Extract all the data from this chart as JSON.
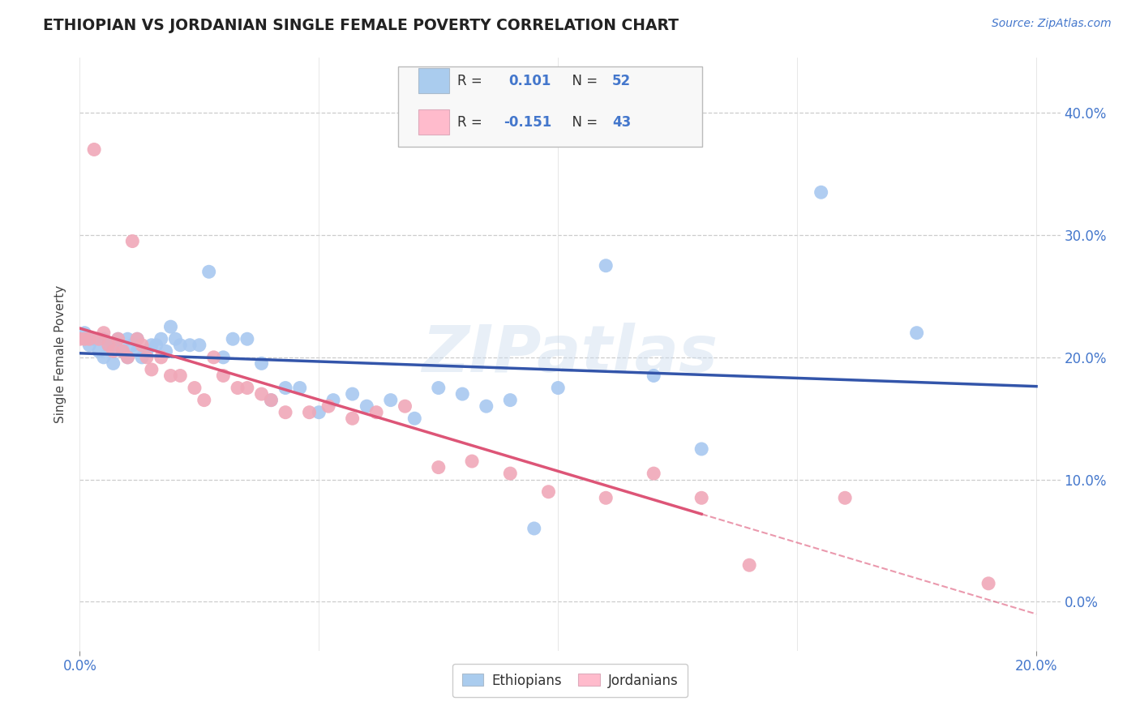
{
  "title": "ETHIOPIAN VS JORDANIAN SINGLE FEMALE POVERTY CORRELATION CHART",
  "source": "Source: ZipAtlas.com",
  "ylabel": "Single Female Poverty",
  "xlim": [
    0.0,
    0.205
  ],
  "ylim": [
    -0.04,
    0.445
  ],
  "yticks": [
    0.0,
    0.1,
    0.2,
    0.3,
    0.4
  ],
  "xticks": [
    0.0,
    0.2
  ],
  "background_color": "#ffffff",
  "grid_color": "#cccccc",
  "watermark": "ZIPatlas",
  "ethiopian_color": "#a8c8f0",
  "ethiopian_edge_color": "#a8c8f0",
  "jordanian_color": "#f0a8b8",
  "jordanian_edge_color": "#f0a8b8",
  "ethiopian_line_color": "#3355aa",
  "jordanian_line_color": "#dd5577",
  "R_ethiopian": 0.101,
  "N_ethiopian": 52,
  "R_jordanian": -0.151,
  "N_jordanian": 43,
  "ethiopians_x": [
    0.001,
    0.002,
    0.003,
    0.004,
    0.005,
    0.005,
    0.006,
    0.007,
    0.007,
    0.008,
    0.009,
    0.01,
    0.01,
    0.011,
    0.012,
    0.012,
    0.013,
    0.014,
    0.015,
    0.016,
    0.017,
    0.018,
    0.019,
    0.02,
    0.021,
    0.023,
    0.025,
    0.027,
    0.03,
    0.032,
    0.035,
    0.038,
    0.04,
    0.043,
    0.046,
    0.05,
    0.053,
    0.057,
    0.06,
    0.065,
    0.07,
    0.075,
    0.08,
    0.085,
    0.09,
    0.095,
    0.1,
    0.11,
    0.12,
    0.13,
    0.155,
    0.175
  ],
  "ethiopians_y": [
    0.22,
    0.21,
    0.215,
    0.205,
    0.215,
    0.2,
    0.21,
    0.21,
    0.195,
    0.215,
    0.205,
    0.215,
    0.2,
    0.21,
    0.205,
    0.215,
    0.2,
    0.205,
    0.21,
    0.21,
    0.215,
    0.205,
    0.225,
    0.215,
    0.21,
    0.21,
    0.21,
    0.27,
    0.2,
    0.215,
    0.215,
    0.195,
    0.165,
    0.175,
    0.175,
    0.155,
    0.165,
    0.17,
    0.16,
    0.165,
    0.15,
    0.175,
    0.17,
    0.16,
    0.165,
    0.06,
    0.175,
    0.275,
    0.185,
    0.125,
    0.335,
    0.22
  ],
  "jordanians_x": [
    0.0,
    0.001,
    0.002,
    0.003,
    0.004,
    0.005,
    0.006,
    0.007,
    0.008,
    0.009,
    0.01,
    0.011,
    0.012,
    0.013,
    0.014,
    0.015,
    0.017,
    0.019,
    0.021,
    0.024,
    0.026,
    0.028,
    0.03,
    0.033,
    0.035,
    0.038,
    0.04,
    0.043,
    0.048,
    0.052,
    0.057,
    0.062,
    0.068,
    0.075,
    0.082,
    0.09,
    0.098,
    0.11,
    0.12,
    0.13,
    0.14,
    0.16,
    0.19
  ],
  "jordanians_y": [
    0.215,
    0.215,
    0.215,
    0.37,
    0.215,
    0.22,
    0.21,
    0.205,
    0.215,
    0.205,
    0.2,
    0.295,
    0.215,
    0.21,
    0.2,
    0.19,
    0.2,
    0.185,
    0.185,
    0.175,
    0.165,
    0.2,
    0.185,
    0.175,
    0.175,
    0.17,
    0.165,
    0.155,
    0.155,
    0.16,
    0.15,
    0.155,
    0.16,
    0.11,
    0.115,
    0.105,
    0.09,
    0.085,
    0.105,
    0.085,
    0.03,
    0.085,
    0.015
  ],
  "legend_text_color": "#4477cc",
  "legend_box_color": "#f5f5f5",
  "eth_legend_color": "#aaccee",
  "jor_legend_color": "#ffbbcc"
}
